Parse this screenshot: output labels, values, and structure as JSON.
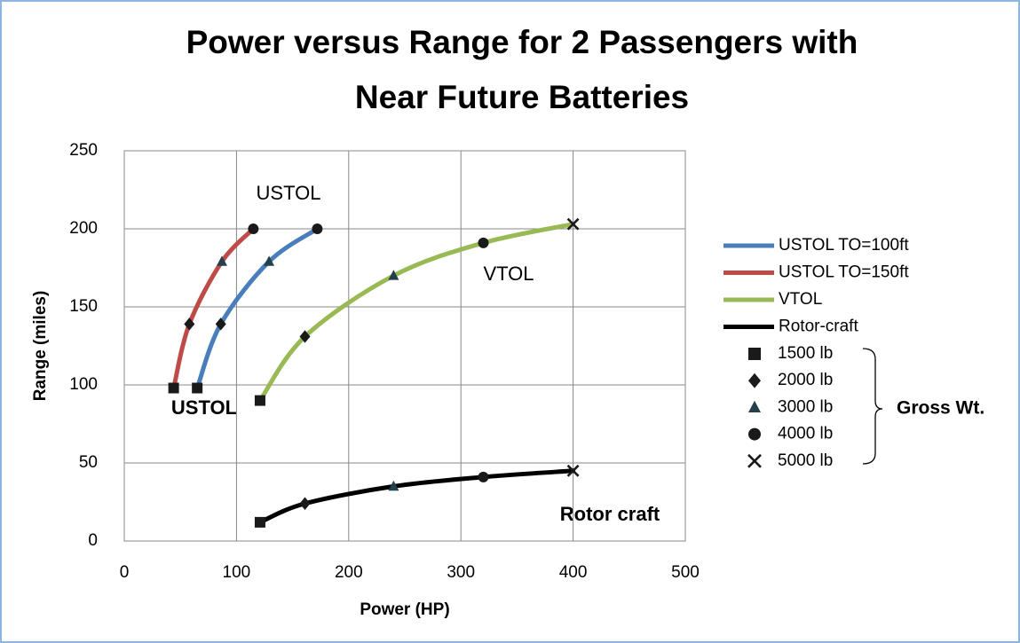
{
  "chart_data": {
    "type": "line",
    "title": [
      "Power versus Range for 2 Passengers with",
      "Near Future Batteries"
    ],
    "xlabel": "Power (HP)",
    "ylabel": "Range (miles)",
    "xlim": [
      0,
      500
    ],
    "xticks": [
      0,
      100,
      200,
      300,
      400,
      500
    ],
    "ylim": [
      0,
      250
    ],
    "yticks": [
      0,
      50,
      100,
      150,
      200,
      250
    ],
    "grid": true,
    "legend": "right",
    "series": [
      {
        "name": "USTOL TO=100ft",
        "color": "#4a7ebb",
        "x": [
          65,
          86,
          129,
          172
        ],
        "values": [
          98,
          139,
          179,
          200
        ]
      },
      {
        "name": "USTOL TO=150ft",
        "color": "#be4b48",
        "x": [
          44,
          58,
          87,
          115
        ],
        "values": [
          98,
          139,
          179,
          200
        ]
      },
      {
        "name": "VTOL",
        "color": "#98b954",
        "x": [
          121,
          161,
          240,
          320,
          400
        ],
        "values": [
          90,
          131,
          170,
          191,
          203
        ]
      },
      {
        "name": "Rotor-craft",
        "color": "#000000",
        "x": [
          121,
          161,
          240,
          320,
          400
        ],
        "values": [
          12,
          24,
          35,
          41,
          45
        ]
      }
    ],
    "markers": [
      {
        "label": "1500 lb",
        "shape": "square"
      },
      {
        "label": "2000 lb",
        "shape": "diamond"
      },
      {
        "label": "3000 lb",
        "shape": "triangle"
      },
      {
        "label": "4000 lb",
        "shape": "circle"
      },
      {
        "label": "5000 lb",
        "shape": "x"
      }
    ],
    "marker_group_label": "Gross Wt.",
    "annotations": [
      "USTOL",
      "USTOL",
      "VTOL",
      "Rotor craft"
    ]
  }
}
